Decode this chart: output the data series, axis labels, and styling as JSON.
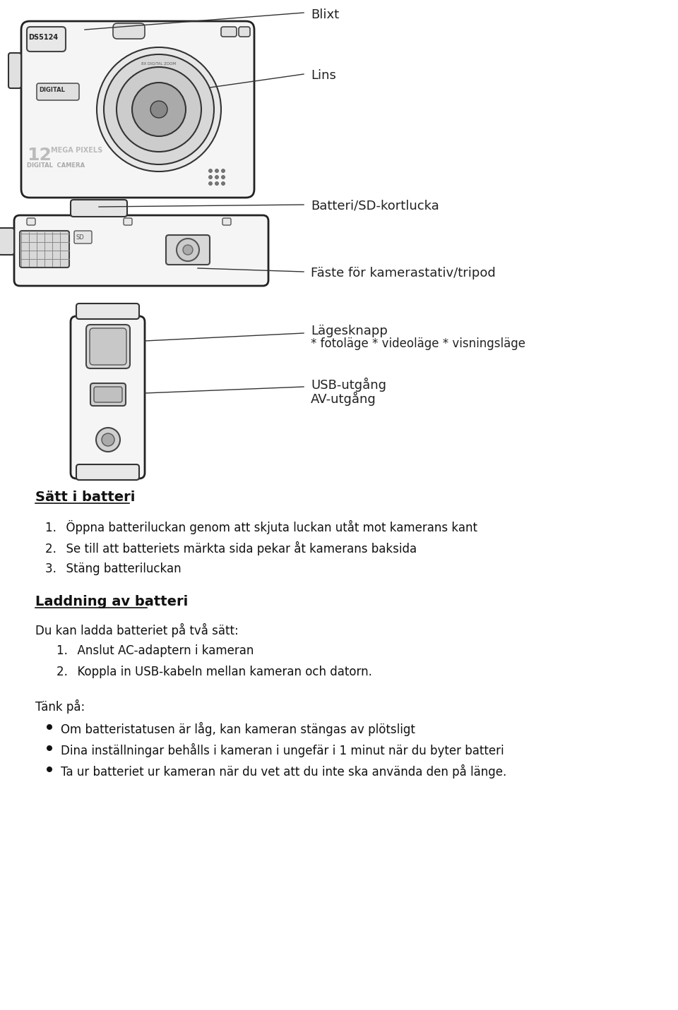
{
  "bg_color": "#ffffff",
  "text_color": "#000000",
  "fig_width": 9.6,
  "fig_height": 14.31,
  "dpi": 100,
  "label_blixt": "Blixt",
  "label_lins": "Lins",
  "label_batteri_sd": "Batteri/SD-kortlucka",
  "label_faste": "Fäste för kamerastativ/tripod",
  "label_lagesknapp": "Lägesknapp",
  "label_lagesknapp_sub": "* fotoläge * videoläge * visningsläge",
  "label_usb": "USB-utgång",
  "label_av": "AV-utgång",
  "section1_title": "Sätt i batteri",
  "section1_items": [
    "Öppna batteriluckan genom att skjuta luckan utåt mot kamerans kant",
    "Se till att batteriets märkta sida pekar åt kamerans baksida",
    "Stäng batteriluckan"
  ],
  "section2_title": "Laddning av batteri",
  "section2_intro": "Du kan ladda batteriet på två sätt:",
  "section2_items": [
    "Anslut AC-adaptern i kameran",
    "Koppla in USB-kabeln mellan kameran och datorn."
  ],
  "section3_intro": "Tänk på:",
  "section3_items": [
    "Om batteristatusen är låg, kan kameran stängas av plötsligt",
    "Dina inställningar behålls i kameran i ungefär i 1 minut när du byter batteri",
    "Ta ur batteriet ur kameran när du vet att du inte ska använda den på länge."
  ]
}
